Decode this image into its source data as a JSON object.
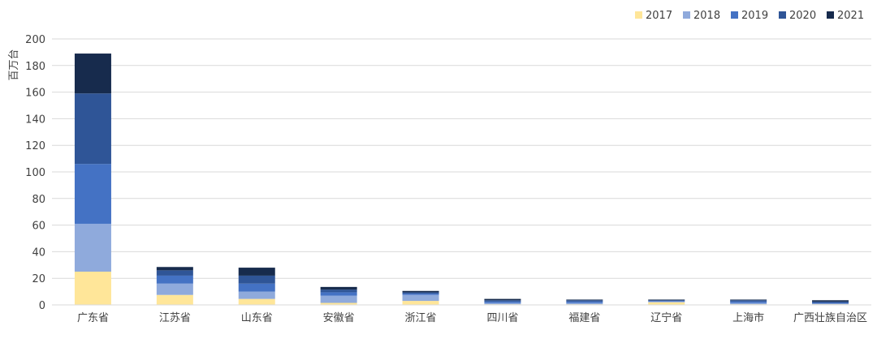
{
  "chart_data": {
    "type": "bar",
    "stacked": true,
    "title": "",
    "xlabel": "",
    "ylabel": "百万台",
    "ylim": [
      0,
      200
    ],
    "yticks": [
      0,
      20,
      40,
      60,
      80,
      100,
      120,
      140,
      160,
      180,
      200
    ],
    "grid": true,
    "legend_position": "top-right",
    "categories": [
      "广东省",
      "江苏省",
      "山东省",
      "安徽省",
      "浙江省",
      "四川省",
      "福建省",
      "辽宁省",
      "上海市",
      "广西壮族自治区"
    ],
    "series": [
      {
        "name": "2017",
        "color": "#FFE699",
        "values": [
          25,
          7.5,
          4.5,
          1.5,
          3,
          0.5,
          0.5,
          2,
          0.5,
          0.5
        ]
      },
      {
        "name": "2018",
        "color": "#8FAADC",
        "values": [
          36,
          8.5,
          5.5,
          5.5,
          4.5,
          1,
          1,
          0.5,
          1,
          0.5
        ]
      },
      {
        "name": "2019",
        "color": "#4472C4",
        "values": [
          45,
          6,
          6,
          2.5,
          1,
          1,
          1,
          0.5,
          1,
          0.5
        ]
      },
      {
        "name": "2020",
        "color": "#2F5597",
        "values": [
          53,
          4,
          6,
          2,
          1,
          1,
          1,
          0.5,
          1,
          1
        ]
      },
      {
        "name": "2021",
        "color": "#172B4D",
        "values": [
          30,
          2.5,
          6,
          2,
          1,
          1,
          0.5,
          0.5,
          0.5,
          1
        ]
      }
    ]
  }
}
